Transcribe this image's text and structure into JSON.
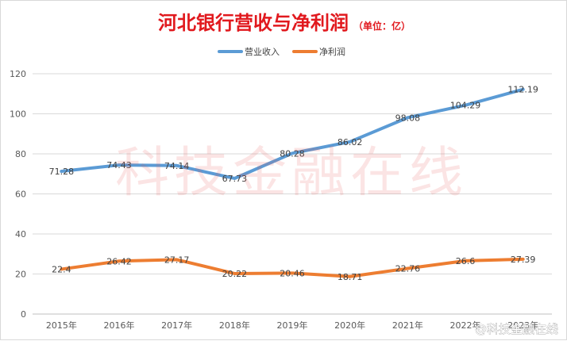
{
  "chart_data": {
    "type": "line",
    "title": "河北银行营收与净利润",
    "subtitle": "（单位：亿）",
    "categories": [
      "2015年",
      "2016年",
      "2017年",
      "2018年",
      "2019年",
      "2020年",
      "2021年",
      "2022年",
      "2023年"
    ],
    "series": [
      {
        "name": "营业收入",
        "values": [
          71.28,
          74.43,
          74.14,
          67.73,
          80.28,
          86.02,
          98.08,
          104.29,
          112.19
        ],
        "labels": [
          "71.28",
          "74.43",
          "74.14",
          "67.73",
          "80.28",
          "86.02",
          "98.08",
          "104.29",
          "112.19"
        ],
        "color": "#5b9bd5"
      },
      {
        "name": "净利润",
        "values": [
          22.4,
          26.42,
          27.17,
          20.22,
          20.46,
          18.71,
          22.76,
          26.6,
          27.39
        ],
        "labels": [
          "22.4",
          "26.42",
          "27.17",
          "20.22",
          "20.46",
          "18.71",
          "22.76",
          "26.6",
          "27.39"
        ],
        "color": "#ed7d31"
      }
    ],
    "yticks": [
      "0",
      "20",
      "40",
      "60",
      "80",
      "100",
      "120"
    ],
    "ylim": [
      0,
      120
    ],
    "grid": true,
    "legend_position": "top-center",
    "watermark": "科技金融在线",
    "corner_watermark": "@科技金融在线"
  }
}
